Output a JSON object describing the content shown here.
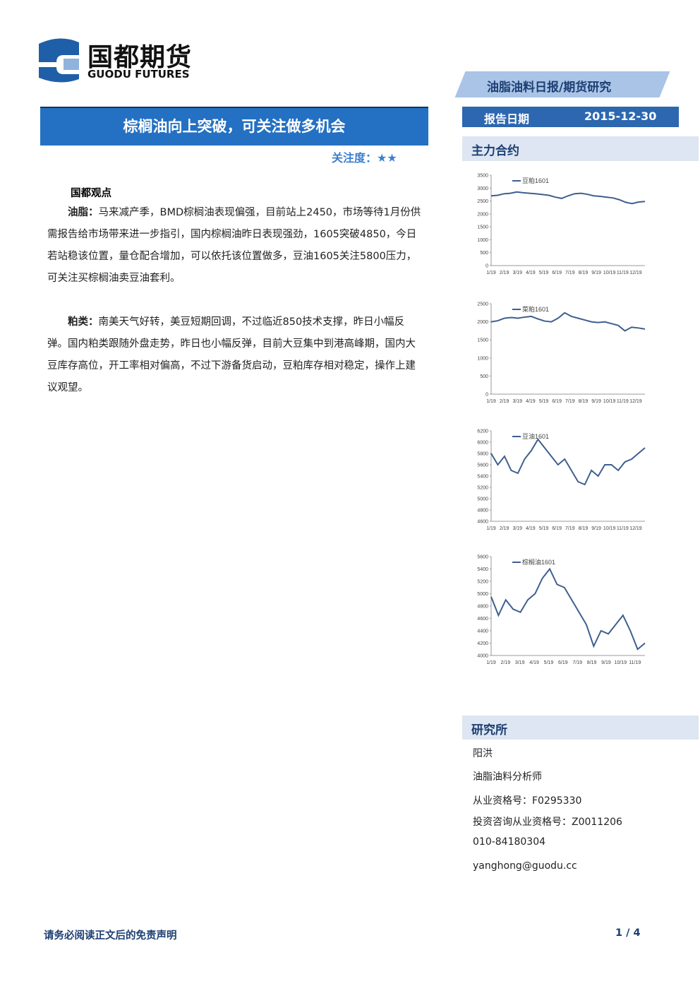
{
  "header": {
    "logo_cn": "国都期货",
    "logo_en": "GUODU FUTURES",
    "category": "油脂油料日报/期货研究"
  },
  "title": "棕榈油向上突破，可关注做多机会",
  "attention": {
    "label": "关注度：",
    "stars": "★★"
  },
  "report_date": {
    "label": "报告日期",
    "value": "2015-12-30"
  },
  "section_main": "主力合约",
  "body": {
    "heading": "国都观点",
    "paragraphs": [
      {
        "lead": "油脂：",
        "text": "马来减产季，BMD棕榈油表现偏强，目前站上2450，市场等待1月份供需报告给市场带来进一步指引，国内棕榈油昨日表现强劲，1605突破4850，今日若站稳该位置，量仓配合增加，可以依托该位置做多，豆油1605关注5800压力，可关注买棕榈油卖豆油套利。"
      },
      {
        "lead": "粕类：",
        "text": "南美天气好转，美豆短期回调，不过临近850技术支撑，昨日小幅反弹。国内粕类跟随外盘走势，昨日也小幅反弹，目前大豆集中到港高峰期，国内大豆库存高位，开工率相对偏高，不过下游备货启动，豆粕库存相对稳定，操作上建议观望。"
      }
    ]
  },
  "chart_data": [
    {
      "type": "line",
      "xtick_labels": [
        "1/19",
        "2/19",
        "3/19",
        "4/19",
        "5/19",
        "6/19",
        "7/19",
        "8/19",
        "9/19",
        "10/19",
        "11/19",
        "12/19"
      ],
      "ylim": [
        0,
        3500
      ],
      "yticks": [
        0,
        500,
        1000,
        1500,
        2000,
        2500,
        3000,
        3500
      ],
      "series": [
        {
          "name": "豆粕1601",
          "color": "#3d5f8f",
          "values": [
            2700,
            2720,
            2780,
            2800,
            2850,
            2820,
            2800,
            2780,
            2750,
            2720,
            2650,
            2600,
            2700,
            2780,
            2800,
            2760,
            2700,
            2680,
            2650,
            2620,
            2550,
            2450,
            2400,
            2460,
            2480
          ]
        }
      ]
    },
    {
      "type": "line",
      "xtick_labels": [
        "1/19",
        "2/19",
        "3/19",
        "4/19",
        "5/19",
        "6/19",
        "7/19",
        "8/19",
        "9/19",
        "10/19",
        "11/19",
        "12/19"
      ],
      "ylim": [
        0,
        2500
      ],
      "yticks": [
        0,
        500,
        1000,
        1500,
        2000,
        2500
      ],
      "series": [
        {
          "name": "菜粕1601",
          "color": "#3d5f8f",
          "values": [
            2000,
            2030,
            2100,
            2120,
            2100,
            2130,
            2150,
            2080,
            2020,
            2000,
            2100,
            2250,
            2150,
            2100,
            2050,
            2000,
            1980,
            2000,
            1950,
            1900,
            1750,
            1850,
            1830,
            1800
          ]
        }
      ]
    },
    {
      "type": "line",
      "xtick_labels": [
        "1/19",
        "2/19",
        "3/19",
        "4/19",
        "5/19",
        "6/19",
        "7/19",
        "8/19",
        "9/19",
        "10/19",
        "11/19",
        "12/19"
      ],
      "ylim": [
        4600,
        6200
      ],
      "yticks": [
        4600,
        4800,
        5000,
        5200,
        5400,
        5600,
        5800,
        6000,
        6200
      ],
      "series": [
        {
          "name": "豆油1601",
          "color": "#3d5f8f",
          "values": [
            5800,
            5600,
            5750,
            5500,
            5450,
            5700,
            5850,
            6050,
            5900,
            5750,
            5600,
            5700,
            5500,
            5300,
            5250,
            5500,
            5400,
            5600,
            5600,
            5500,
            5650,
            5700,
            5800,
            5900
          ]
        }
      ]
    },
    {
      "type": "line",
      "xtick_labels": [
        "1/19",
        "2/19",
        "3/19",
        "4/19",
        "5/19",
        "6/19",
        "7/19",
        "8/19",
        "9/19",
        "10/19",
        "11/19"
      ],
      "ylim": [
        4000,
        5600
      ],
      "yticks": [
        4000,
        4200,
        4400,
        4600,
        4800,
        5000,
        5200,
        5400,
        5600
      ],
      "series": [
        {
          "name": "棕榈油1601",
          "color": "#3d5f8f",
          "values": [
            4950,
            4650,
            4900,
            4750,
            4700,
            4900,
            5000,
            5250,
            5400,
            5150,
            5100,
            4900,
            4700,
            4500,
            4150,
            4400,
            4350,
            4500,
            4650,
            4400,
            4100,
            4200
          ]
        }
      ]
    }
  ],
  "research": {
    "heading": "研究所",
    "lines": [
      "阳洪",
      "油脂油料分析师",
      "从业资格号：F0295330",
      "投资咨询从业资格号：Z0011206",
      "010-84180304",
      "yanghong@guodu.cc"
    ]
  },
  "footer": {
    "disclaimer": "请务必阅读正文后的免责声明",
    "page": "1 / 4"
  }
}
